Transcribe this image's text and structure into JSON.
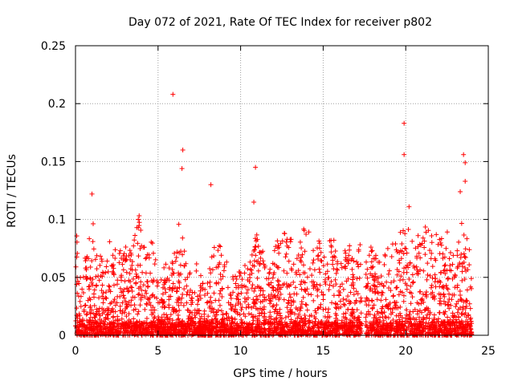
{
  "chart_data": {
    "type": "scatter",
    "title": "Day 072 of 2021, Rate Of TEC Index for receiver p802",
    "xlabel": "GPS time / hours",
    "ylabel": "ROTI / TECUs",
    "xlim": [
      0,
      25
    ],
    "ylim": [
      0,
      0.25
    ],
    "x_ticks": [
      0,
      5,
      10,
      15,
      20,
      25
    ],
    "y_ticks": [
      0,
      0.05,
      0.1,
      0.15,
      0.2,
      0.25
    ],
    "x_tick_labels": [
      "0",
      "5",
      "10",
      "15",
      "20",
      "25"
    ],
    "y_tick_labels": [
      "0",
      "0.05",
      "0.1",
      "0.15",
      "0.2",
      "0.25"
    ],
    "grid": true,
    "marker": "+",
    "color": "#ff0000",
    "series": [
      {
        "name": "ROTI",
        "outliers": [
          {
            "x": 5.9,
            "y": 0.208
          },
          {
            "x": 6.5,
            "y": 0.16
          },
          {
            "x": 6.45,
            "y": 0.144
          },
          {
            "x": 8.2,
            "y": 0.13
          },
          {
            "x": 10.9,
            "y": 0.145
          },
          {
            "x": 19.9,
            "y": 0.183
          },
          {
            "x": 19.9,
            "y": 0.156
          },
          {
            "x": 23.5,
            "y": 0.156
          },
          {
            "x": 23.6,
            "y": 0.149
          },
          {
            "x": 23.6,
            "y": 0.133
          },
          {
            "x": 23.3,
            "y": 0.124
          },
          {
            "x": 1.0,
            "y": 0.122
          },
          {
            "x": 10.8,
            "y": 0.115
          },
          {
            "x": 20.2,
            "y": 0.111
          }
        ],
        "envelope": [
          {
            "x": 0.0,
            "y": 0.03
          },
          {
            "x": 0.05,
            "y": 0.1
          },
          {
            "x": 0.2,
            "y": 0.05
          },
          {
            "x": 0.6,
            "y": 0.07
          },
          {
            "x": 1.0,
            "y": 0.105
          },
          {
            "x": 1.3,
            "y": 0.07
          },
          {
            "x": 1.8,
            "y": 0.07
          },
          {
            "x": 2.1,
            "y": 0.095
          },
          {
            "x": 2.5,
            "y": 0.07
          },
          {
            "x": 3.0,
            "y": 0.085
          },
          {
            "x": 3.4,
            "y": 0.07
          },
          {
            "x": 3.8,
            "y": 0.108
          },
          {
            "x": 4.2,
            "y": 0.075
          },
          {
            "x": 4.6,
            "y": 0.09
          },
          {
            "x": 5.0,
            "y": 0.055
          },
          {
            "x": 5.4,
            "y": 0.06
          },
          {
            "x": 5.9,
            "y": 0.075
          },
          {
            "x": 6.4,
            "y": 0.108
          },
          {
            "x": 6.8,
            "y": 0.05
          },
          {
            "x": 7.3,
            "y": 0.065
          },
          {
            "x": 7.7,
            "y": 0.06
          },
          {
            "x": 8.0,
            "y": 0.05
          },
          {
            "x": 8.5,
            "y": 0.085
          },
          {
            "x": 9.0,
            "y": 0.07
          },
          {
            "x": 9.5,
            "y": 0.05
          },
          {
            "x": 10.0,
            "y": 0.06
          },
          {
            "x": 10.5,
            "y": 0.07
          },
          {
            "x": 10.9,
            "y": 0.09
          },
          {
            "x": 11.3,
            "y": 0.075
          },
          {
            "x": 11.7,
            "y": 0.07
          },
          {
            "x": 12.1,
            "y": 0.08
          },
          {
            "x": 12.5,
            "y": 0.09
          },
          {
            "x": 13.0,
            "y": 0.085
          },
          {
            "x": 13.5,
            "y": 0.07
          },
          {
            "x": 13.8,
            "y": 0.1
          },
          {
            "x": 14.2,
            "y": 0.095
          },
          {
            "x": 14.6,
            "y": 0.09
          },
          {
            "x": 15.0,
            "y": 0.07
          },
          {
            "x": 15.4,
            "y": 0.095
          },
          {
            "x": 15.8,
            "y": 0.075
          },
          {
            "x": 16.2,
            "y": 0.07
          },
          {
            "x": 16.6,
            "y": 0.08
          },
          {
            "x": 17.0,
            "y": 0.075
          },
          {
            "x": 17.2,
            "y": 0.1
          },
          {
            "x": 17.4,
            "y": 0.0
          },
          {
            "x": 17.6,
            "y": 0.07
          },
          {
            "x": 18.0,
            "y": 0.08
          },
          {
            "x": 18.4,
            "y": 0.065
          },
          {
            "x": 18.8,
            "y": 0.075
          },
          {
            "x": 19.2,
            "y": 0.08
          },
          {
            "x": 19.7,
            "y": 0.09
          },
          {
            "x": 20.1,
            "y": 0.1
          },
          {
            "x": 20.5,
            "y": 0.085
          },
          {
            "x": 20.9,
            "y": 0.09
          },
          {
            "x": 21.3,
            "y": 0.095
          },
          {
            "x": 21.7,
            "y": 0.09
          },
          {
            "x": 22.1,
            "y": 0.085
          },
          {
            "x": 22.5,
            "y": 0.09
          },
          {
            "x": 22.9,
            "y": 0.07
          },
          {
            "x": 23.3,
            "y": 0.1
          },
          {
            "x": 23.7,
            "y": 0.1
          },
          {
            "x": 24.0,
            "y": 0.05
          }
        ]
      }
    ]
  }
}
